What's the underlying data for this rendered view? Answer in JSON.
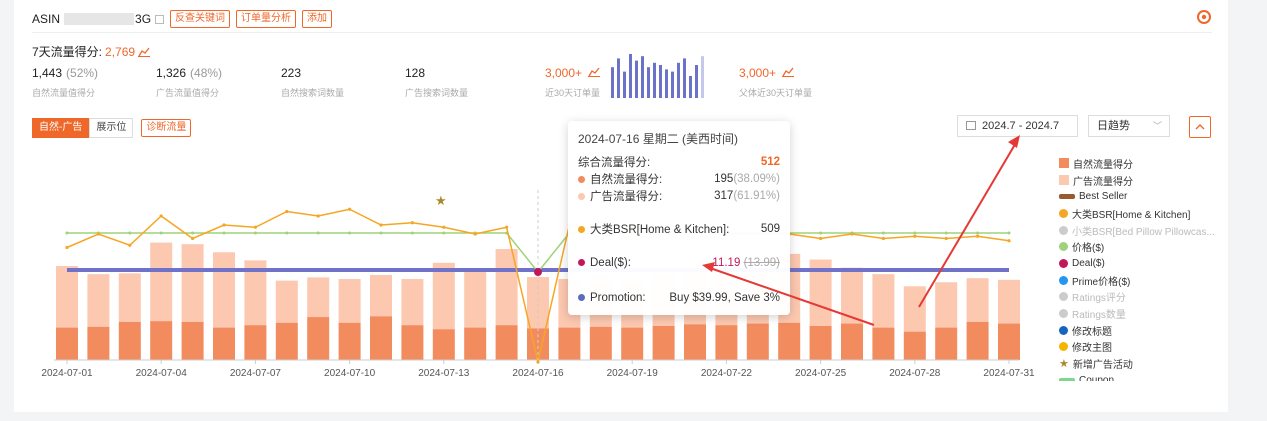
{
  "header": {
    "asin_label": "ASIN",
    "asin_trail": "3G",
    "tags": [
      "反查关键词",
      "订单量分析",
      "添加"
    ]
  },
  "score": {
    "label": "7天流量得分:",
    "value": "2,769"
  },
  "metrics": [
    {
      "value": "1,443",
      "pct": "(52%)",
      "label": "自然流量值得分"
    },
    {
      "value": "1,326",
      "pct": "(48%)",
      "label": "广告流量值得分"
    },
    {
      "value": "223",
      "pct": "",
      "label": "自然搜索词数量"
    },
    {
      "value": "128",
      "pct": "",
      "label": "广告搜索词数量"
    },
    {
      "value": "3,000+",
      "pct": "",
      "label": "近30天订单量"
    },
    {
      "value": "3,000+",
      "pct": "",
      "label": "父体近30天订单量"
    }
  ],
  "mini_bars": [
    0.7,
    0.9,
    0.6,
    1.0,
    0.85,
    0.95,
    0.7,
    0.8,
    0.75,
    0.65,
    0.6,
    0.8,
    0.9,
    0.5,
    0.75,
    0.95
  ],
  "tabs": {
    "natural_ad": "自然-广告",
    "display": "展示位",
    "diagnose": "诊断流量"
  },
  "date_range": "2024.7 - 2024.7",
  "trend_select": "日趋势",
  "legend": [
    {
      "label": "自然流量得分",
      "type": "sw",
      "color": "#f28c5f",
      "muted": false
    },
    {
      "label": "广告流量得分",
      "type": "sw",
      "color": "#fcc8b0",
      "muted": false
    },
    {
      "label": "Best Seller",
      "type": "bar",
      "color": "#9b5a2c",
      "muted": false
    },
    {
      "label": "大类BSR[Home & Kitchen]",
      "type": "dot",
      "color": "#f5a623",
      "muted": false
    },
    {
      "label": "小类BSR[Bed Pillow Pillowcas...",
      "type": "dot",
      "color": "#cccccc",
      "muted": true
    },
    {
      "label": "价格($)",
      "type": "dot",
      "color": "#9fd27a",
      "muted": false
    },
    {
      "label": "Deal($)",
      "type": "dot",
      "color": "#c2185b",
      "muted": false
    },
    {
      "label": "Prime价格($)",
      "type": "dot",
      "color": "#2196f3",
      "muted": false
    },
    {
      "label": "Ratings评分",
      "type": "dot",
      "color": "#cccccc",
      "muted": true
    },
    {
      "label": "Ratings数量",
      "type": "dot",
      "color": "#cccccc",
      "muted": true
    },
    {
      "label": "修改标题",
      "type": "dot",
      "color": "#1565c0",
      "muted": false
    },
    {
      "label": "修改主图",
      "type": "dot",
      "color": "#f5b400",
      "muted": false
    },
    {
      "label": "新增广告活动",
      "type": "star",
      "color": "#a88a2a",
      "muted": false
    },
    {
      "label": "Coupon",
      "type": "bar",
      "color": "#7bd88f",
      "muted": false
    }
  ],
  "tooltip": {
    "date": "2024-07-16 星期二 (美西时间)",
    "total_label": "综合流量得分:",
    "total_value": "512",
    "natural_label": "自然流量得分:",
    "natural_value": "195",
    "natural_pct": "(38.09%)",
    "ad_label": "广告流量得分:",
    "ad_value": "317",
    "ad_pct": "(61.91%)",
    "bsr_label": "大类BSR[Home & Kitchen]:",
    "bsr_value": "509",
    "deal_label": "Deal($):",
    "deal_value": "11.19",
    "deal_old": "(13.99)",
    "promo_label": "Promotion:",
    "promo_value": "Buy $39.99, Save 3%"
  },
  "chart_data": {
    "type": "bar",
    "categories": [
      "2024-07-01",
      "2024-07-02",
      "2024-07-03",
      "2024-07-04",
      "2024-07-05",
      "2024-07-06",
      "2024-07-07",
      "2024-07-08",
      "2024-07-09",
      "2024-07-10",
      "2024-07-11",
      "2024-07-12",
      "2024-07-13",
      "2024-07-14",
      "2024-07-15",
      "2024-07-16",
      "2024-07-17",
      "2024-07-18",
      "2024-07-19",
      "2024-07-20",
      "2024-07-21",
      "2024-07-22",
      "2024-07-23",
      "2024-07-24",
      "2024-07-25",
      "2024-07-26",
      "2024-07-27",
      "2024-07-28",
      "2024-07-29",
      "2024-07-30",
      "2024-07-31"
    ],
    "x_tick_labels": [
      "2024-07-01",
      "2024-07-04",
      "2024-07-07",
      "2024-07-10",
      "2024-07-13",
      "2024-07-16",
      "2024-07-19",
      "2024-07-22",
      "2024-07-25",
      "2024-07-28",
      "2024-07-31"
    ],
    "series": [
      {
        "name": "自然流量得分",
        "values": [
          200,
          205,
          235,
          240,
          235,
          200,
          215,
          230,
          265,
          230,
          270,
          215,
          190,
          200,
          215,
          195,
          200,
          205,
          200,
          210,
          220,
          215,
          225,
          230,
          210,
          225,
          200,
          175,
          200,
          235,
          225
        ]
      },
      {
        "name": "广告流量得分",
        "values": [
          380,
          325,
          300,
          485,
          480,
          465,
          400,
          260,
          245,
          270,
          255,
          285,
          410,
          355,
          470,
          317,
          300,
          310,
          300,
          320,
          330,
          315,
          310,
          425,
          410,
          345,
          330,
          280,
          280,
          270,
          270
        ]
      },
      {
        "name": "大类BSR[Home & Kitchen]",
        "values": [
          450,
          480,
          455,
          520,
          470,
          500,
          495,
          530,
          520,
          535,
          500,
          505,
          495,
          480,
          495,
          509,
          500,
          490,
          495,
          490,
          485,
          480,
          480,
          480,
          470,
          480,
          470,
          475,
          470,
          475,
          465
        ]
      },
      {
        "name": "价格($)",
        "values": [
          39.99,
          39.99,
          39.99,
          39.99,
          39.99,
          39.99,
          39.99,
          39.99,
          39.99,
          39.99,
          39.99,
          39.99,
          39.99,
          39.99,
          39.99,
          39.99,
          39.99,
          39.99,
          39.99,
          39.99,
          39.99,
          39.99,
          39.99,
          39.99,
          39.99,
          39.99,
          39.99,
          39.99,
          39.99,
          39.99,
          39.99
        ]
      },
      {
        "name": "Deal($)",
        "values": [
          null,
          null,
          null,
          null,
          null,
          null,
          null,
          null,
          null,
          null,
          null,
          null,
          null,
          null,
          null,
          11.19,
          null,
          null,
          null,
          null,
          null,
          null,
          null,
          null,
          null,
          null,
          null,
          null,
          null,
          null,
          null
        ]
      }
    ],
    "events": [
      {
        "name": "新增广告活动",
        "x": "2024-07-13"
      }
    ],
    "promotion": {
      "name": "Promotion",
      "value": "Buy $39.99, Save 3%"
    }
  }
}
